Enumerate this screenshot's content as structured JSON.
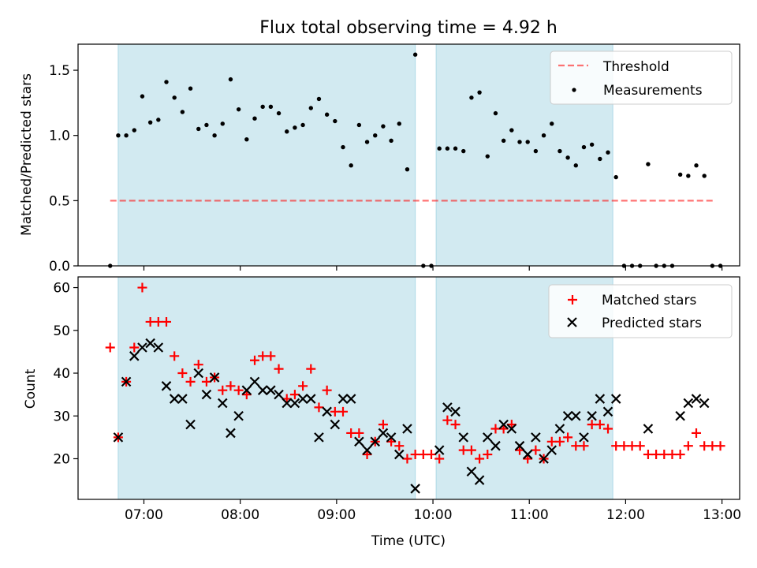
{
  "figure": {
    "title": "Flux total observing time = 4.92 h"
  },
  "colors": {
    "band": "#add8e6",
    "threshold": "#ff0000",
    "measurement": "#000000",
    "matched": "#ff0000",
    "predicted": "#000000"
  },
  "chart_data": [
    {
      "type": "scatter",
      "ylabel": "Matched/Predicted stars",
      "ylim": [
        0,
        1.7
      ],
      "xlim": [
        "06:19",
        "13:11"
      ],
      "yticks": [
        "0.0",
        "0.5",
        "1.0",
        "1.5"
      ],
      "legend": {
        "placement": "top-right",
        "entries": [
          "Threshold",
          "Measurements"
        ]
      },
      "shaded_intervals": [
        [
          "06:44",
          "09:49"
        ],
        [
          "10:02",
          "11:52"
        ]
      ],
      "threshold": {
        "name": "Threshold",
        "y": 0.5,
        "x_range": [
          "06:39",
          "12:55"
        ]
      },
      "series": [
        {
          "name": "Measurements",
          "points": [
            [
              "06:39",
              0.0
            ],
            [
              "06:44",
              1.0
            ],
            [
              "06:49",
              1.0
            ],
            [
              "06:54",
              1.04
            ],
            [
              "06:59",
              1.3
            ],
            [
              "07:04",
              1.1
            ],
            [
              "07:09",
              1.12
            ],
            [
              "07:14",
              1.41
            ],
            [
              "07:19",
              1.29
            ],
            [
              "07:24",
              1.18
            ],
            [
              "07:29",
              1.36
            ],
            [
              "07:34",
              1.05
            ],
            [
              "07:39",
              1.08
            ],
            [
              "07:44",
              1.0
            ],
            [
              "07:49",
              1.09
            ],
            [
              "07:54",
              1.43
            ],
            [
              "07:59",
              1.2
            ],
            [
              "08:04",
              0.97
            ],
            [
              "08:09",
              1.13
            ],
            [
              "08:14",
              1.22
            ],
            [
              "08:19",
              1.22
            ],
            [
              "08:24",
              1.17
            ],
            [
              "08:29",
              1.03
            ],
            [
              "08:34",
              1.06
            ],
            [
              "08:39",
              1.08
            ],
            [
              "08:44",
              1.21
            ],
            [
              "08:49",
              1.28
            ],
            [
              "08:54",
              1.16
            ],
            [
              "08:59",
              1.11
            ],
            [
              "09:04",
              0.91
            ],
            [
              "09:09",
              0.77
            ],
            [
              "09:14",
              1.08
            ],
            [
              "09:19",
              0.95
            ],
            [
              "09:24",
              1.0
            ],
            [
              "09:29",
              1.07
            ],
            [
              "09:34",
              0.96
            ],
            [
              "09:39",
              1.09
            ],
            [
              "09:44",
              0.74
            ],
            [
              "09:49",
              1.62
            ],
            [
              "09:54",
              0.0
            ],
            [
              "09:59",
              0.0
            ],
            [
              "10:04",
              0.9
            ],
            [
              "10:09",
              0.9
            ],
            [
              "10:14",
              0.9
            ],
            [
              "10:19",
              0.88
            ],
            [
              "10:24",
              1.29
            ],
            [
              "10:29",
              1.33
            ],
            [
              "10:34",
              0.84
            ],
            [
              "10:39",
              1.17
            ],
            [
              "10:44",
              0.96
            ],
            [
              "10:49",
              1.04
            ],
            [
              "10:54",
              0.95
            ],
            [
              "10:59",
              0.95
            ],
            [
              "11:04",
              0.88
            ],
            [
              "11:09",
              1.0
            ],
            [
              "11:14",
              1.09
            ],
            [
              "11:19",
              0.88
            ],
            [
              "11:24",
              0.83
            ],
            [
              "11:29",
              0.77
            ],
            [
              "11:34",
              0.91
            ],
            [
              "11:39",
              0.93
            ],
            [
              "11:44",
              0.82
            ],
            [
              "11:49",
              0.87
            ],
            [
              "11:54",
              0.68
            ],
            [
              "11:59",
              0.0
            ],
            [
              "12:04",
              0.0
            ],
            [
              "12:09",
              0.0
            ],
            [
              "12:14",
              0.78
            ],
            [
              "12:19",
              0.0
            ],
            [
              "12:24",
              0.0
            ],
            [
              "12:29",
              0.0
            ],
            [
              "12:34",
              0.7
            ],
            [
              "12:39",
              0.69
            ],
            [
              "12:44",
              0.77
            ],
            [
              "12:49",
              0.69
            ],
            [
              "12:54",
              0.0
            ],
            [
              "12:59",
              0.0
            ]
          ]
        }
      ]
    },
    {
      "type": "scatter",
      "xlabel": "Time (UTC)",
      "ylabel": "Count",
      "ylim": [
        10.5,
        62.5
      ],
      "xlim": [
        "06:19",
        "13:11"
      ],
      "xticks": [
        "07:00",
        "08:00",
        "09:00",
        "10:00",
        "11:00",
        "12:00",
        "13:00"
      ],
      "yticks": [
        "20",
        "30",
        "40",
        "50",
        "60"
      ],
      "legend": {
        "placement": "top-right",
        "entries": [
          "Matched stars",
          "Predicted stars"
        ]
      },
      "shaded_intervals": [
        [
          "06:44",
          "09:49"
        ],
        [
          "10:02",
          "11:52"
        ]
      ],
      "series": [
        {
          "name": "Matched stars",
          "points": [
            [
              "06:39",
              46
            ],
            [
              "06:44",
              25
            ],
            [
              "06:49",
              38
            ],
            [
              "06:54",
              46
            ],
            [
              "06:59",
              60
            ],
            [
              "07:04",
              52
            ],
            [
              "07:09",
              52
            ],
            [
              "07:14",
              52
            ],
            [
              "07:19",
              44
            ],
            [
              "07:24",
              40
            ],
            [
              "07:29",
              38
            ],
            [
              "07:34",
              42
            ],
            [
              "07:39",
              38
            ],
            [
              "07:44",
              39
            ],
            [
              "07:49",
              36
            ],
            [
              "07:54",
              37
            ],
            [
              "07:59",
              36
            ],
            [
              "08:04",
              35
            ],
            [
              "08:09",
              43
            ],
            [
              "08:14",
              44
            ],
            [
              "08:19",
              44
            ],
            [
              "08:24",
              41
            ],
            [
              "08:29",
              34
            ],
            [
              "08:34",
              35
            ],
            [
              "08:39",
              37
            ],
            [
              "08:44",
              41
            ],
            [
              "08:49",
              32
            ],
            [
              "08:54",
              36
            ],
            [
              "08:59",
              31
            ],
            [
              "09:04",
              31
            ],
            [
              "09:09",
              26
            ],
            [
              "09:14",
              26
            ],
            [
              "09:19",
              21
            ],
            [
              "09:24",
              24
            ],
            [
              "09:29",
              28
            ],
            [
              "09:34",
              24
            ],
            [
              "09:39",
              23
            ],
            [
              "09:44",
              20
            ],
            [
              "09:49",
              21
            ],
            [
              "09:54",
              21
            ],
            [
              "09:59",
              21
            ],
            [
              "10:04",
              20
            ],
            [
              "10:09",
              29
            ],
            [
              "10:14",
              28
            ],
            [
              "10:19",
              22
            ],
            [
              "10:24",
              22
            ],
            [
              "10:29",
              20
            ],
            [
              "10:34",
              21
            ],
            [
              "10:39",
              27
            ],
            [
              "10:44",
              27
            ],
            [
              "10:49",
              28
            ],
            [
              "10:54",
              22
            ],
            [
              "10:59",
              20
            ],
            [
              "11:04",
              22
            ],
            [
              "11:09",
              20
            ],
            [
              "11:14",
              24
            ],
            [
              "11:19",
              24
            ],
            [
              "11:24",
              25
            ],
            [
              "11:29",
              23
            ],
            [
              "11:34",
              23
            ],
            [
              "11:39",
              28
            ],
            [
              "11:44",
              28
            ],
            [
              "11:49",
              27
            ],
            [
              "11:54",
              23
            ],
            [
              "11:59",
              23
            ],
            [
              "12:04",
              23
            ],
            [
              "12:09",
              23
            ],
            [
              "12:14",
              21
            ],
            [
              "12:19",
              21
            ],
            [
              "12:24",
              21
            ],
            [
              "12:29",
              21
            ],
            [
              "12:34",
              21
            ],
            [
              "12:39",
              23
            ],
            [
              "12:44",
              26
            ],
            [
              "12:49",
              23
            ],
            [
              "12:54",
              23
            ],
            [
              "12:59",
              23
            ]
          ]
        },
        {
          "name": "Predicted stars",
          "points": [
            [
              "06:44",
              25
            ],
            [
              "06:49",
              38
            ],
            [
              "06:54",
              44
            ],
            [
              "06:59",
              46
            ],
            [
              "07:04",
              47
            ],
            [
              "07:09",
              46
            ],
            [
              "07:14",
              37
            ],
            [
              "07:19",
              34
            ],
            [
              "07:24",
              34
            ],
            [
              "07:29",
              28
            ],
            [
              "07:34",
              40
            ],
            [
              "07:39",
              35
            ],
            [
              "07:44",
              39
            ],
            [
              "07:49",
              33
            ],
            [
              "07:54",
              26
            ],
            [
              "07:59",
              30
            ],
            [
              "08:04",
              36
            ],
            [
              "08:09",
              38
            ],
            [
              "08:14",
              36
            ],
            [
              "08:19",
              36
            ],
            [
              "08:24",
              35
            ],
            [
              "08:29",
              33
            ],
            [
              "08:34",
              33
            ],
            [
              "08:39",
              34
            ],
            [
              "08:44",
              34
            ],
            [
              "08:49",
              25
            ],
            [
              "08:54",
              31
            ],
            [
              "08:59",
              28
            ],
            [
              "09:04",
              34
            ],
            [
              "09:09",
              34
            ],
            [
              "09:14",
              24
            ],
            [
              "09:19",
              22
            ],
            [
              "09:24",
              24
            ],
            [
              "09:29",
              26
            ],
            [
              "09:34",
              25
            ],
            [
              "09:39",
              21
            ],
            [
              "09:44",
              27
            ],
            [
              "09:49",
              13
            ],
            [
              "10:04",
              22
            ],
            [
              "10:09",
              32
            ],
            [
              "10:14",
              31
            ],
            [
              "10:19",
              25
            ],
            [
              "10:24",
              17
            ],
            [
              "10:29",
              15
            ],
            [
              "10:34",
              25
            ],
            [
              "10:39",
              23
            ],
            [
              "10:44",
              28
            ],
            [
              "10:49",
              27
            ],
            [
              "10:54",
              23
            ],
            [
              "10:59",
              21
            ],
            [
              "11:04",
              25
            ],
            [
              "11:09",
              20
            ],
            [
              "11:14",
              22
            ],
            [
              "11:19",
              27
            ],
            [
              "11:24",
              30
            ],
            [
              "11:29",
              30
            ],
            [
              "11:34",
              25
            ],
            [
              "11:39",
              30
            ],
            [
              "11:44",
              34
            ],
            [
              "11:49",
              31
            ],
            [
              "11:54",
              34
            ],
            [
              "12:14",
              27
            ],
            [
              "12:34",
              30
            ],
            [
              "12:39",
              33
            ],
            [
              "12:44",
              34
            ],
            [
              "12:49",
              33
            ]
          ]
        }
      ]
    }
  ]
}
